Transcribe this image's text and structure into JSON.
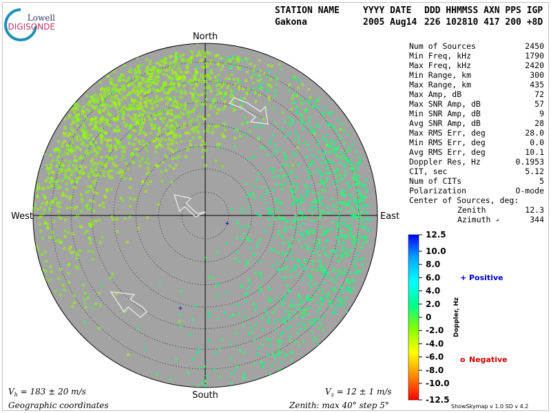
{
  "logo": {
    "line1": "Lowell",
    "line2": "DIGISONDE"
  },
  "header": {
    "row1": [
      "STATION NAME",
      "YYYY DATE",
      "DDD HHMMSS AXN PPS IGP"
    ],
    "row2": [
      "Gakona",
      "2005 Aug14",
      "226 102810 417 200 +8D"
    ]
  },
  "stats": [
    {
      "label": "Num of Sources",
      "value": "2450"
    },
    {
      "label": "Min Freq, kHz",
      "value": "1790"
    },
    {
      "label": "Max Freq, kHz",
      "value": "2420"
    },
    {
      "label": "Min Range, km",
      "value": "300"
    },
    {
      "label": "Max Range, km",
      "value": "435"
    },
    {
      "label": "Max Amp, dB",
      "value": "72"
    },
    {
      "label": "Max SNR Amp, dB",
      "value": "57"
    },
    {
      "label": "Min SNR Amp, dB",
      "value": "9"
    },
    {
      "label": "Avg SNR Amp, dB",
      "value": "28"
    },
    {
      "label": "Max RMS Err, deg",
      "value": "28.0"
    },
    {
      "label": "Min RMS Err, deg",
      "value": "0.0"
    },
    {
      "label": "Avg RMS Err, deg",
      "value": "10.1"
    },
    {
      "label": "Doppler Res, Hz",
      "value": "0.1953"
    },
    {
      "label": "CIT, sec",
      "value": "5.12"
    },
    {
      "label": "Num of CITs",
      "value": "5"
    },
    {
      "label": "Polarization",
      "value": "O-mode"
    }
  ],
  "center": {
    "title": "Center of Sources, deg:",
    "zenith_label": "Zenith",
    "zenith_value": "12.3",
    "azimuth_label": "Azimuth",
    "azimuth_value": "344",
    "azimuth_glyph": "↶"
  },
  "directions": {
    "north": "North",
    "south": "South",
    "west": "West",
    "east": "East"
  },
  "colorbar": {
    "ticks": [
      "12.5",
      "10.0",
      "8.0",
      "6.0",
      "4.0",
      "2.0",
      "0",
      "-2.0",
      "-4.0",
      "-6.0",
      "-8.0",
      "-10.0",
      "-12.5"
    ],
    "label": "Doppler, Hz",
    "stops": [
      "#0000ff",
      "#00aaff",
      "#00ffff",
      "#00ff88",
      "#88ff00",
      "#ffff00",
      "#ff8800",
      "#ff0000"
    ]
  },
  "legend": {
    "positive": {
      "symbol": "+",
      "label": "Positive",
      "color": "#0000cc"
    },
    "negative": {
      "symbol": "o",
      "label": "Negative",
      "color": "#cc0000"
    }
  },
  "footer": {
    "vh_symbol": "V",
    "vh_sub": "h",
    "vh_text": " = 183 ± 20 m/s",
    "vz_symbol": "V",
    "vz_sub": "z",
    "vz_text": " = 12 ± 1 m/s",
    "coords": "Geographic coordinates",
    "zenith_info": "Zenith: max 40°  step 5°",
    "version": "ShowSkymap v 1.0   SD v 4.2"
  },
  "chart_data": {
    "type": "scatter",
    "projection": "polar skymap",
    "zenith_max_deg": 40,
    "zenith_step_deg": 5,
    "colorbar_range_hz": [
      -12.5,
      12.5
    ],
    "velocity_arrows": [
      {
        "position": "north-east",
        "direction": "south-east"
      },
      {
        "position": "center",
        "direction": "north-west"
      },
      {
        "position": "south-west",
        "direction": "north-west"
      }
    ],
    "series": [
      {
        "name": "Negative",
        "marker": "o",
        "clusters": [
          {
            "azimuth_deg": 330,
            "zenith_deg": [
              10,
              38
            ],
            "count": 1200,
            "doppler_hz": [
              -3,
              -1
            ]
          },
          {
            "azimuth_deg": 290,
            "zenith_deg": [
              20,
              40
            ],
            "count": 250,
            "doppler_hz": [
              -2.5,
              -1
            ]
          }
        ]
      },
      {
        "name": "Positive",
        "marker": "+",
        "clusters": [
          {
            "azimuth_deg": 100,
            "zenith_deg": [
              5,
              38
            ],
            "count": 700,
            "doppler_hz": [
              0.5,
              2
            ]
          },
          {
            "azimuth_deg": 60,
            "zenith_deg": [
              15,
              38
            ],
            "count": 200,
            "doppler_hz": [
              0.5,
              2
            ]
          },
          {
            "azimuth_deg": 160,
            "zenith_deg": [
              10,
              40
            ],
            "count": 100,
            "doppler_hz": [
              0.5,
              2
            ]
          }
        ],
        "notable_points": [
          {
            "azimuth_deg": 110,
            "zenith_deg": 5,
            "doppler_hz": 11
          },
          {
            "azimuth_deg": 195,
            "zenith_deg": 21,
            "doppler_hz": 9
          }
        ]
      }
    ]
  }
}
